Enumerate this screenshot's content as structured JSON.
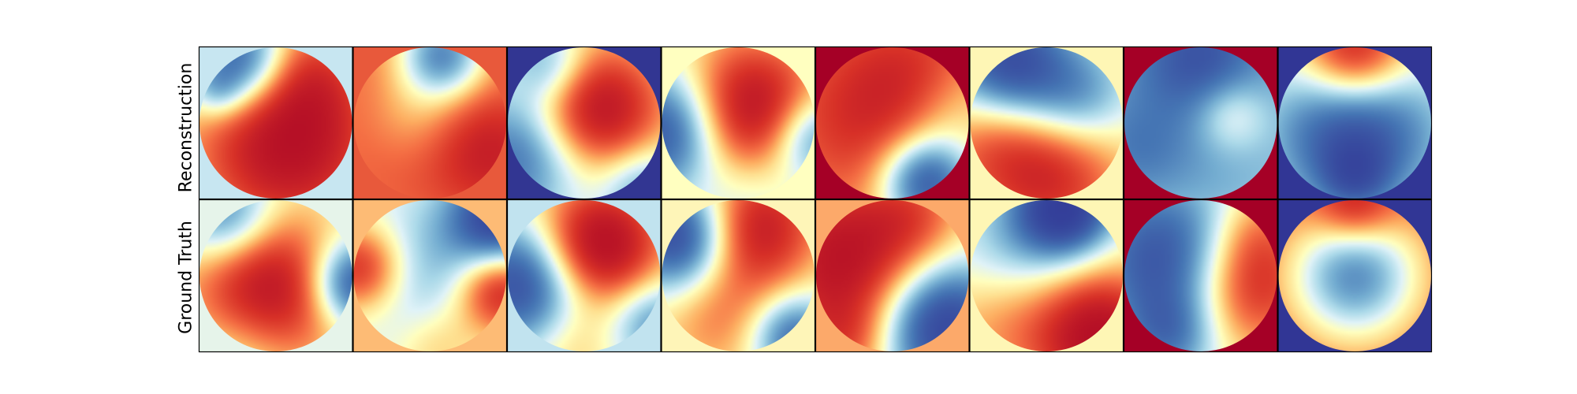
{
  "row_labels": [
    "Reconstruction",
    "Ground Truth"
  ],
  "palette": [
    "#313695",
    "#4575b4",
    "#74add1",
    "#abd9e9",
    "#e0f3f8",
    "#ffffbf",
    "#fee090",
    "#fdae61",
    "#f46d43",
    "#d73027",
    "#a50026"
  ],
  "rows": [
    [
      {
        "corner": "#c7e6f1",
        "blobs": [
          [
            0.58,
            0.64,
            0.42,
            1.0
          ],
          [
            0.28,
            0.1,
            0.22,
            -1.0
          ],
          [
            0.12,
            0.3,
            0.12,
            -0.3
          ],
          [
            0.7,
            0.18,
            0.25,
            0.35
          ]
        ]
      },
      {
        "corner": "#e8593b",
        "blobs": [
          [
            0.5,
            0.55,
            0.9,
            0.55
          ],
          [
            0.58,
            0.06,
            0.2,
            -1.0
          ],
          [
            0.4,
            0.45,
            0.22,
            -0.25
          ],
          [
            0.9,
            0.7,
            0.25,
            0.35
          ]
        ]
      },
      {
        "corner": "#323692",
        "blobs": [
          [
            0.58,
            0.42,
            0.3,
            1.0
          ],
          [
            0.1,
            0.7,
            0.3,
            -0.75
          ],
          [
            0.88,
            0.92,
            0.2,
            -0.5
          ],
          [
            0.28,
            0.12,
            0.18,
            -0.5
          ]
        ]
      },
      {
        "corner": "#ffffc0",
        "blobs": [
          [
            0.57,
            0.42,
            0.32,
            1.05
          ],
          [
            0.05,
            0.55,
            0.28,
            -1.0
          ],
          [
            0.97,
            0.6,
            0.2,
            -0.7
          ],
          [
            0.6,
            0.95,
            0.2,
            -0.2
          ]
        ]
      },
      {
        "corner": "#a50026",
        "blobs": [
          [
            0.4,
            0.45,
            0.55,
            0.75
          ],
          [
            0.72,
            0.88,
            0.22,
            -1.2
          ],
          [
            0.88,
            0.4,
            0.22,
            -0.3
          ],
          [
            0.7,
            0.15,
            0.3,
            0.2
          ]
        ]
      },
      {
        "corner": "#fef6b5",
        "blobs": [
          [
            0.25,
            0.1,
            0.28,
            -1.0
          ],
          [
            0.5,
            0.8,
            0.35,
            0.8
          ],
          [
            0.7,
            0.35,
            0.25,
            -0.6
          ],
          [
            0.05,
            0.6,
            0.25,
            0.25
          ]
        ]
      },
      {
        "corner": "#a50026",
        "blobs": [
          [
            0.45,
            0.35,
            0.7,
            -0.6
          ],
          [
            0.7,
            0.45,
            0.18,
            0.45
          ],
          [
            0.5,
            0.05,
            0.25,
            -0.4
          ],
          [
            0.05,
            0.7,
            0.22,
            -0.2
          ]
        ]
      },
      {
        "corner": "#313695",
        "blobs": [
          [
            0.5,
            0.55,
            0.38,
            -1.0
          ],
          [
            0.5,
            0.05,
            0.25,
            1.0
          ],
          [
            0.5,
            0.85,
            0.15,
            -0.4
          ]
        ]
      }
    ],
    [
      {
        "corner": "#e6f4ea",
        "blobs": [
          [
            0.45,
            0.6,
            0.35,
            1.0
          ],
          [
            0.18,
            0.12,
            0.22,
            -0.7
          ],
          [
            1.0,
            0.55,
            0.2,
            -1.0
          ],
          [
            0.3,
            0.95,
            0.25,
            -0.3
          ]
        ]
      },
      {
        "corner": "#fdbb75",
        "blobs": [
          [
            0.5,
            0.5,
            0.4,
            -0.4
          ],
          [
            0.05,
            0.45,
            0.2,
            0.8
          ],
          [
            0.95,
            0.6,
            0.2,
            0.9
          ],
          [
            0.95,
            0.12,
            0.22,
            -1.0
          ],
          [
            0.55,
            0.95,
            0.2,
            0.3
          ]
        ]
      },
      {
        "corner": "#c1e3ef",
        "blobs": [
          [
            0.6,
            0.3,
            0.28,
            1.1
          ],
          [
            0.1,
            0.55,
            0.28,
            -1.0
          ],
          [
            0.95,
            0.8,
            0.2,
            -0.55
          ],
          [
            0.4,
            0.95,
            0.2,
            0.2
          ]
        ]
      },
      {
        "corner": "#fef5b8",
        "blobs": [
          [
            0.12,
            0.25,
            0.25,
            -1.1
          ],
          [
            0.62,
            0.18,
            0.28,
            0.85
          ],
          [
            0.85,
            0.9,
            0.2,
            -0.8
          ],
          [
            0.4,
            0.75,
            0.3,
            0.4
          ]
        ]
      },
      {
        "corner": "#fca96a",
        "blobs": [
          [
            0.2,
            0.4,
            0.4,
            1.0
          ],
          [
            0.82,
            0.82,
            0.3,
            -1.2
          ],
          [
            0.65,
            0.1,
            0.22,
            0.3
          ],
          [
            0.2,
            0.95,
            0.2,
            0.35
          ]
        ]
      },
      {
        "corner": "#fef6b5",
        "blobs": [
          [
            0.62,
            0.05,
            0.22,
            -1.2
          ],
          [
            0.85,
            0.9,
            0.3,
            1.05
          ],
          [
            0.3,
            0.3,
            0.3,
            -0.35
          ],
          [
            0.2,
            0.8,
            0.3,
            0.3
          ]
        ]
      },
      {
        "corner": "#a50026",
        "blobs": [
          [
            0.3,
            0.4,
            0.38,
            -1.0
          ],
          [
            0.8,
            0.55,
            0.3,
            0.9
          ],
          [
            0.3,
            0.9,
            0.2,
            -0.45
          ],
          [
            0.85,
            0.2,
            0.2,
            0.25
          ]
        ]
      },
      {
        "corner": "#313695",
        "blobs": [
          [
            0.5,
            0.5,
            0.3,
            -1.1
          ],
          [
            0.5,
            0.5,
            1.0,
            0.55
          ],
          [
            0.5,
            0.05,
            0.18,
            0.5
          ]
        ]
      }
    ]
  ]
}
